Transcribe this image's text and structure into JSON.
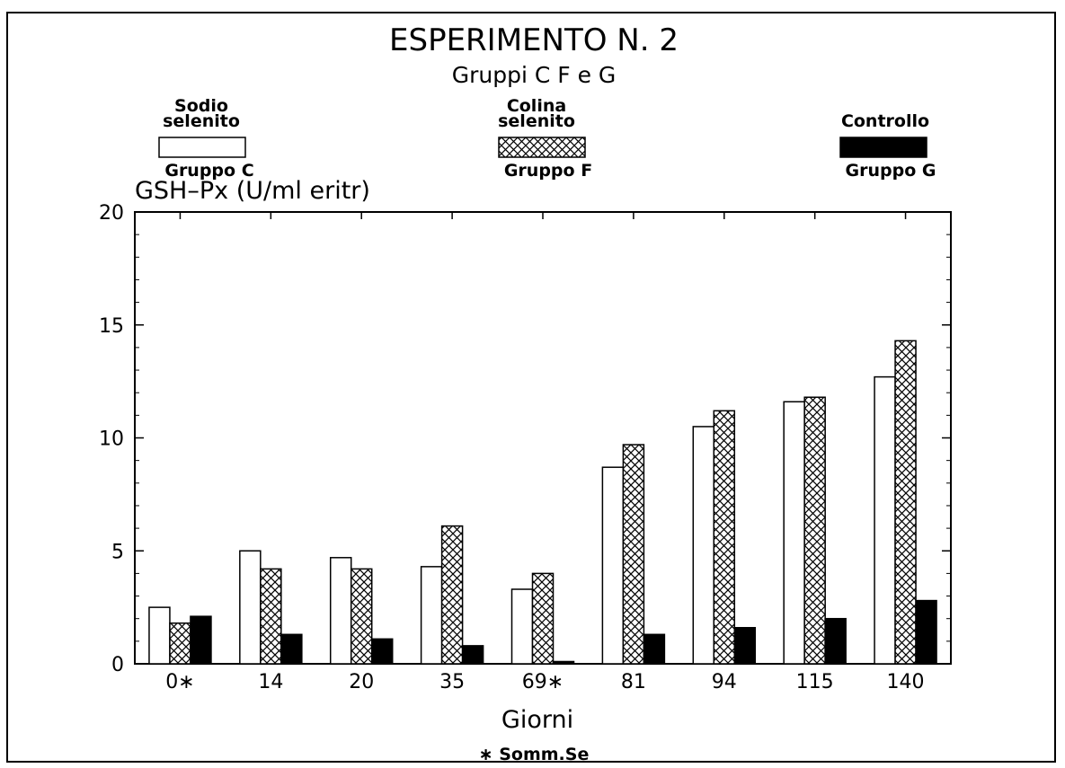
{
  "chart_data": {
    "type": "bar",
    "title": "ESPERIMENTO N. 2",
    "subtitle": "Gruppi C F e G",
    "ylabel": "GSH–Px (U/ml eritr)",
    "xlabel": "Giorni",
    "footnote": "∗ Somm.Se",
    "categories": [
      "0∗",
      "14",
      "20",
      "35",
      "69∗",
      "81",
      "94",
      "115",
      "140"
    ],
    "ylim": [
      0,
      20
    ],
    "yticks": [
      "0",
      "5",
      "10",
      "15",
      "20"
    ],
    "grid": false,
    "legend_position": "top",
    "series": [
      {
        "name": "Sodio selenito",
        "legend_lines": [
          "Sodio",
          "selenito"
        ],
        "group_label": "Gruppo C",
        "fill": "white",
        "values": [
          2.5,
          5.0,
          4.7,
          4.3,
          3.3,
          8.7,
          10.5,
          11.6,
          12.7
        ]
      },
      {
        "name": "Colina selenito",
        "legend_lines": [
          "Colina",
          "selenito"
        ],
        "group_label": "Gruppo F",
        "fill": "crosshatch",
        "values": [
          1.8,
          4.2,
          4.2,
          6.1,
          4.0,
          9.7,
          11.2,
          11.8,
          14.3
        ]
      },
      {
        "name": "Controllo",
        "legend_lines": [
          "Controllo"
        ],
        "group_label": "Gruppo G",
        "fill": "black",
        "values": [
          2.1,
          1.3,
          1.1,
          0.8,
          0.1,
          1.3,
          1.6,
          2.0,
          2.8
        ]
      }
    ]
  }
}
